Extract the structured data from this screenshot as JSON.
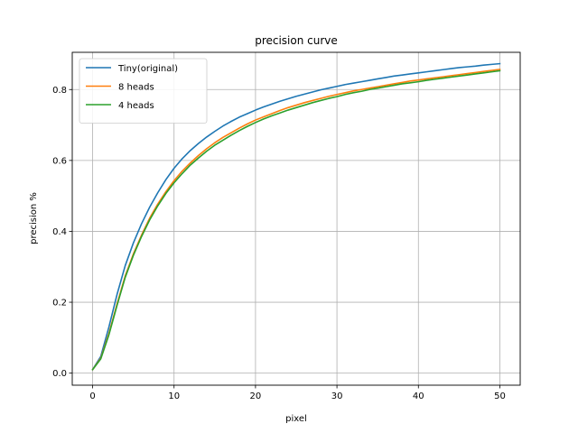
{
  "chart_data": {
    "type": "line",
    "title": "precision curve",
    "xlabel": "pixel",
    "ylabel": "precision %",
    "xlim": [
      -2.5,
      52.5
    ],
    "ylim": [
      -0.034,
      0.905
    ],
    "xticks": [
      0,
      10,
      20,
      30,
      40,
      50
    ],
    "xtick_labels": [
      "0",
      "10",
      "20",
      "30",
      "40",
      "50"
    ],
    "yticks": [
      0.0,
      0.2,
      0.4,
      0.6,
      0.8
    ],
    "ytick_labels": [
      "0.0",
      "0.2",
      "0.4",
      "0.6",
      "0.8"
    ],
    "grid": true,
    "legend_position": "upper-left",
    "x": [
      0,
      1,
      2,
      3,
      4,
      5,
      6,
      7,
      8,
      9,
      10,
      11,
      12,
      13,
      14,
      15,
      16,
      17,
      18,
      19,
      20,
      21,
      22,
      23,
      24,
      25,
      26,
      27,
      28,
      29,
      30,
      31,
      32,
      33,
      34,
      35,
      36,
      37,
      38,
      39,
      40,
      41,
      42,
      43,
      44,
      45,
      46,
      47,
      48,
      49,
      50
    ],
    "series": [
      {
        "name": "Tiny(original)",
        "color": "#1f77b4",
        "values": [
          0.01,
          0.047,
          0.13,
          0.222,
          0.303,
          0.367,
          0.421,
          0.468,
          0.509,
          0.546,
          0.578,
          0.605,
          0.628,
          0.648,
          0.666,
          0.682,
          0.697,
          0.71,
          0.722,
          0.732,
          0.742,
          0.751,
          0.759,
          0.767,
          0.774,
          0.781,
          0.787,
          0.793,
          0.799,
          0.804,
          0.809,
          0.814,
          0.818,
          0.822,
          0.826,
          0.83,
          0.834,
          0.838,
          0.841,
          0.844,
          0.847,
          0.85,
          0.853,
          0.856,
          0.859,
          0.862,
          0.864,
          0.866,
          0.869,
          0.871,
          0.873
        ]
      },
      {
        "name": "8 heads",
        "color": "#ff7f0e",
        "values": [
          0.01,
          0.042,
          0.112,
          0.195,
          0.274,
          0.336,
          0.389,
          0.437,
          0.477,
          0.512,
          0.543,
          0.57,
          0.593,
          0.614,
          0.633,
          0.65,
          0.665,
          0.678,
          0.691,
          0.703,
          0.714,
          0.723,
          0.732,
          0.741,
          0.749,
          0.756,
          0.763,
          0.769,
          0.775,
          0.781,
          0.786,
          0.791,
          0.796,
          0.8,
          0.804,
          0.808,
          0.812,
          0.816,
          0.82,
          0.824,
          0.827,
          0.83,
          0.833,
          0.836,
          0.839,
          0.842,
          0.845,
          0.848,
          0.851,
          0.854,
          0.857
        ]
      },
      {
        "name": "4 heads",
        "color": "#2ca02c",
        "values": [
          0.01,
          0.04,
          0.108,
          0.191,
          0.27,
          0.332,
          0.385,
          0.432,
          0.472,
          0.507,
          0.537,
          0.563,
          0.587,
          0.607,
          0.626,
          0.643,
          0.657,
          0.671,
          0.684,
          0.696,
          0.707,
          0.717,
          0.726,
          0.734,
          0.742,
          0.749,
          0.756,
          0.763,
          0.769,
          0.775,
          0.78,
          0.786,
          0.791,
          0.795,
          0.8,
          0.804,
          0.808,
          0.812,
          0.816,
          0.819,
          0.822,
          0.826,
          0.829,
          0.832,
          0.835,
          0.838,
          0.841,
          0.844,
          0.847,
          0.85,
          0.853
        ]
      }
    ]
  }
}
